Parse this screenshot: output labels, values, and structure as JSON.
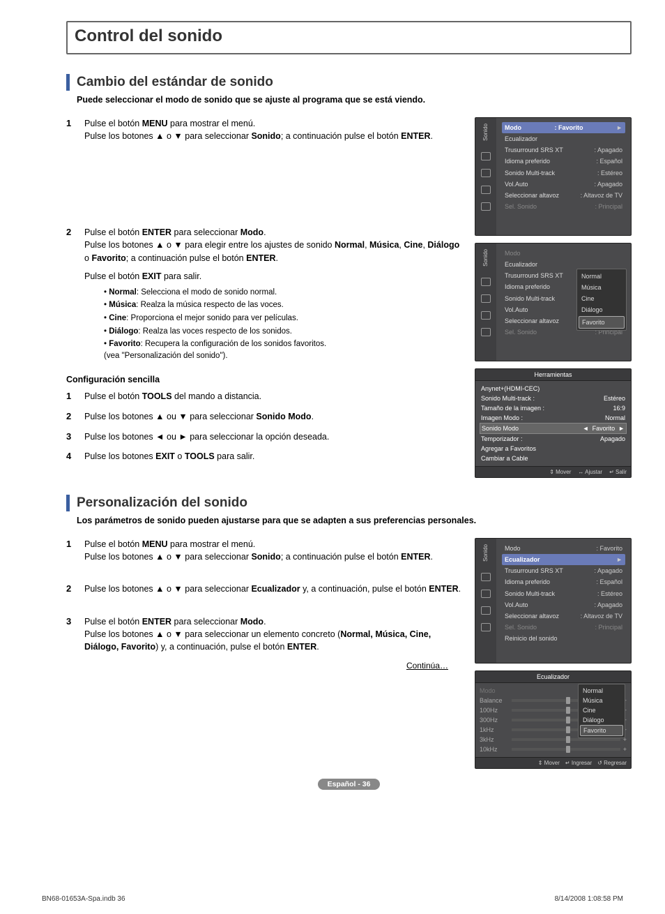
{
  "heading": "Control del sonido",
  "s1": {
    "title": "Cambio del estándar de sonido",
    "intro": "Puede seleccionar el modo de sonido que se ajuste al programa que se está viendo.",
    "step1": {
      "a": "Pulse el botón ",
      "b": "MENU",
      "c": " para mostrar el menú.",
      "d": "Pulse los botones ▲ o ▼ para seleccionar ",
      "e": "Sonido",
      "f": "; a continuación pulse el botón ",
      "g": "ENTER",
      "h": "."
    },
    "step2": {
      "a": "Pulse el botón ",
      "b": "ENTER",
      "c": " para seleccionar ",
      "d": "Modo",
      "e": ".",
      "f": "Pulse los botones ▲ o ▼ para elegir entre los ajustes de sonido ",
      "g": "Normal",
      "h": "Música",
      "i": "Cine",
      "j": "Diálogo",
      "k": "Favorito",
      "l": "; a continuación pulse el botón ",
      "m": "ENTER",
      "n": ".",
      "exit_a": "Pulse el botón ",
      "exit_b": "EXIT",
      "exit_c": " para salir."
    },
    "modes": {
      "normal": {
        "t": "Normal",
        "d": ": Selecciona el modo de sonido normal."
      },
      "musica": {
        "t": "Música",
        "d": ": Realza la música respecto de las voces."
      },
      "cine": {
        "t": "Cine",
        "d": ": Proporciona el mejor sonido para ver películas."
      },
      "dialogo": {
        "t": "Diálogo",
        "d": ": Realza las voces respecto de los sonidos."
      },
      "favorito": {
        "t": "Favorito",
        "d": ": Recupera la configuración de los sonidos favoritos.",
        "d2": "(vea \"Personalización del sonido\")."
      }
    },
    "easy": {
      "title": "Configuración sencilla",
      "s1a": "Pulse el botón ",
      "s1b": "TOOLS",
      "s1c": " del mando a distancia.",
      "s2a": "Pulse los botones ▲ ou ▼ para seleccionar ",
      "s2b": "Sonido Modo",
      "s2c": ".",
      "s3": "Pulse los botones ◄ ou ► para seleccionar la opción deseada.",
      "s4a": "Pulse los botones ",
      "s4b": "EXIT",
      "s4c": " o ",
      "s4d": "TOOLS",
      "s4e": " para salir."
    }
  },
  "s2": {
    "title": "Personalización del sonido",
    "intro": "Los parámetros de sonido pueden ajustarse para que se adapten a sus preferencias personales.",
    "step1": {
      "a": "Pulse el botón ",
      "b": "MENU",
      "c": " para mostrar el menú.",
      "d": "Pulse los botones ▲ o ▼ para seleccionar ",
      "e": "Sonido",
      "f": "; a continuación pulse el botón ",
      "g": "ENTER",
      "h": "."
    },
    "step2": {
      "a": "Pulse los botones ▲ o ▼ para seleccionar ",
      "b": "Ecualizador",
      "c": " y, a continuación, pulse el botón ",
      "d": "ENTER",
      "e": "."
    },
    "step3": {
      "a": "Pulse el botón ",
      "b": "ENTER",
      "c": " para seleccionar ",
      "d": "Modo",
      "e": ".",
      "f": "Pulse los botones ▲ o ▼ para seleccionar un elemento concreto (",
      "g": "Normal, Música, Cine, Diálogo, Favorito",
      "h": ") y, a continuación, pulse el botón ",
      "i": "ENTER",
      "j": "."
    }
  },
  "osd1": {
    "sideLabel": "Sonido",
    "rows": [
      {
        "k": "Modo",
        "v": ": Favorito",
        "hi": true
      },
      {
        "k": "Ecualizador",
        "v": ""
      },
      {
        "k": "Trusurround SRS XT",
        "v": ": Apagado"
      },
      {
        "k": "Idioma preferido",
        "v": ": Español"
      },
      {
        "k": "Sonido Multi-track",
        "v": ": Estéreo"
      },
      {
        "k": "Vol.Auto",
        "v": ": Apagado"
      },
      {
        "k": "Seleccionar altavoz",
        "v": ": Altavoz de TV"
      },
      {
        "k": "Sel. Sonido",
        "v": ": Principal",
        "dim": true
      }
    ]
  },
  "osd2": {
    "sideLabel": "Sonido",
    "rows": [
      {
        "k": "Modo",
        "v": "",
        "dim": true
      },
      {
        "k": "Ecualizador",
        "v": ""
      },
      {
        "k": "Trusurround SRS XT",
        "v": ""
      },
      {
        "k": "Idioma preferido",
        "v": ""
      },
      {
        "k": "Sonido Multi-track",
        "v": ""
      },
      {
        "k": "Vol.Auto",
        "v": ": Apagado"
      },
      {
        "k": "Seleccionar altavoz",
        "v": ": Altavoz de TV"
      },
      {
        "k": "Sel. Sonido",
        "v": ": Principal",
        "dim": true
      }
    ],
    "pop": [
      "Normal",
      "Música",
      "Cine",
      "Diálogo",
      "Favorito"
    ],
    "popSel": 4
  },
  "tools": {
    "title": "Herramientas",
    "rows": [
      {
        "k": "Anynet+(HDMI-CEC)",
        "v": ""
      },
      {
        "k": "Sonido Multi-track   :",
        "v": "Estéreo"
      },
      {
        "k": "Tamaño de la imagen :",
        "v": "16:9"
      },
      {
        "k": "Imagen Modo        :",
        "v": "Normal"
      },
      {
        "k": "Sonido Modo",
        "v": "Favorito",
        "hi": true,
        "arrows": true
      },
      {
        "k": "Temporizador       :",
        "v": "Apagado"
      },
      {
        "k": "Agregar a Favoritos",
        "v": ""
      },
      {
        "k": "Cambiar a Cable",
        "v": ""
      }
    ],
    "foot": [
      "⇕ Mover",
      "↔ Ajustar",
      "↵ Salir"
    ]
  },
  "osd3": {
    "sideLabel": "Sonido",
    "rows": [
      {
        "k": "Modo",
        "v": ": Favorito"
      },
      {
        "k": "Ecualizador",
        "v": "",
        "hi": true
      },
      {
        "k": "Trusurround SRS XT",
        "v": ": Apagado"
      },
      {
        "k": "Idioma preferido",
        "v": ": Español"
      },
      {
        "k": "Sonido Multi-track",
        "v": ": Estéreo"
      },
      {
        "k": "Vol.Auto",
        "v": ": Apagado"
      },
      {
        "k": "Seleccionar altavoz",
        "v": ": Altavoz de TV"
      },
      {
        "k": "Sel. Sonido",
        "v": ": Principal",
        "dim": true
      },
      {
        "k": "Reinicio del sonido",
        "v": ""
      }
    ]
  },
  "eq": {
    "title": "Ecualizador",
    "rows": [
      "Modo",
      "Balance",
      "100Hz",
      "300Hz",
      "1kHz",
      "3kHz",
      "10kHz"
    ],
    "pop": [
      "Normal",
      "Música",
      "Cine",
      "Diálogo",
      "Favorito"
    ],
    "popSel": 4,
    "foot": [
      "⇕ Mover",
      "↵ Ingresar",
      "↺ Regresar"
    ]
  },
  "continue": "Continúa…",
  "pagePill": "Español - 36",
  "footer": {
    "left": "BN68-01653A-Spa.indb   36",
    "right": "8/14/2008   1:08:58 PM"
  }
}
